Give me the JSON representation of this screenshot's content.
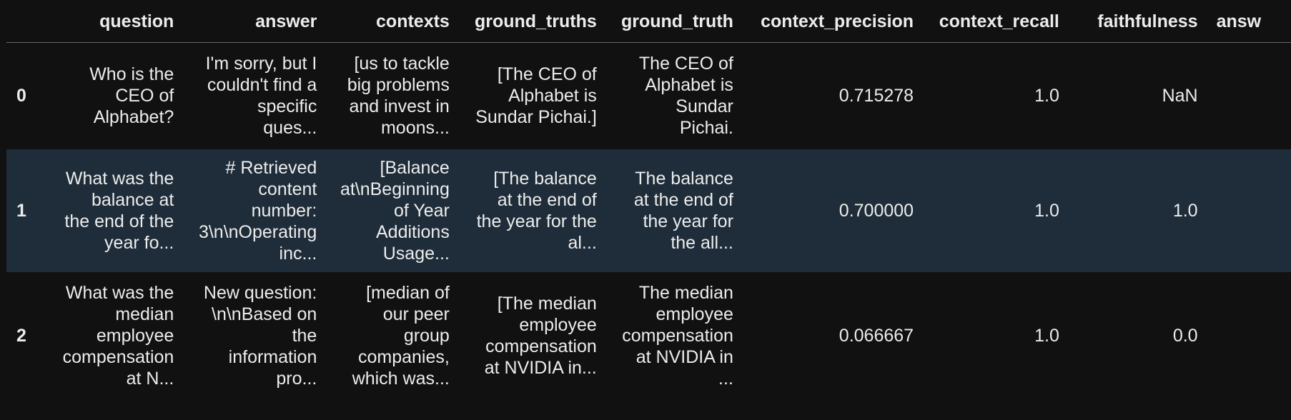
{
  "columns": [
    "",
    "question",
    "answer",
    "contexts",
    "ground_truths",
    "ground_truth",
    "context_precision",
    "context_recall",
    "faithfulness",
    "answ"
  ],
  "rows": [
    {
      "index": "0",
      "question": "Who is the\nCEO of\nAlphabet?",
      "answer": "I'm sorry, but I\ncouldn't find a\nspecific\nques...",
      "contexts": "[us to tackle\nbig problems\nand invest in\nmoons...",
      "ground_truths": "[The CEO of\nAlphabet is\nSundar Pichai.]",
      "ground_truth": "The CEO of\nAlphabet is\nSundar\nPichai.",
      "context_precision": "0.715278",
      "context_recall": "1.0",
      "faithfulness": "NaN",
      "answ": ""
    },
    {
      "index": "1",
      "question": "What was the\nbalance at\nthe end of the\nyear fo...",
      "answer": "# Retrieved\ncontent\nnumber:\n3\\n\\nOperating\ninc...",
      "contexts": "[Balance\nat\\nBeginning\nof Year\nAdditions\nUsage...",
      "ground_truths": "[The balance\nat the end of\nthe year for the\nal...",
      "ground_truth": "The balance\nat the end of\nthe year for\nthe all...",
      "context_precision": "0.700000",
      "context_recall": "1.0",
      "faithfulness": "1.0",
      "answ": ""
    },
    {
      "index": "2",
      "question": "What was the\nmedian\nemployee\ncompensation\nat N...",
      "answer": "New question:\n\\n\\nBased on\nthe\ninformation\npro...",
      "contexts": "[median of\nour peer\ngroup\ncompanies,\nwhich was...",
      "ground_truths": "[The median\nemployee\ncompensation\nat NVIDIA in...",
      "ground_truth": "The median\nemployee\ncompensation\nat NVIDIA in\n...",
      "context_precision": "0.066667",
      "context_recall": "1.0",
      "faithfulness": "0.0",
      "answ": ""
    }
  ]
}
